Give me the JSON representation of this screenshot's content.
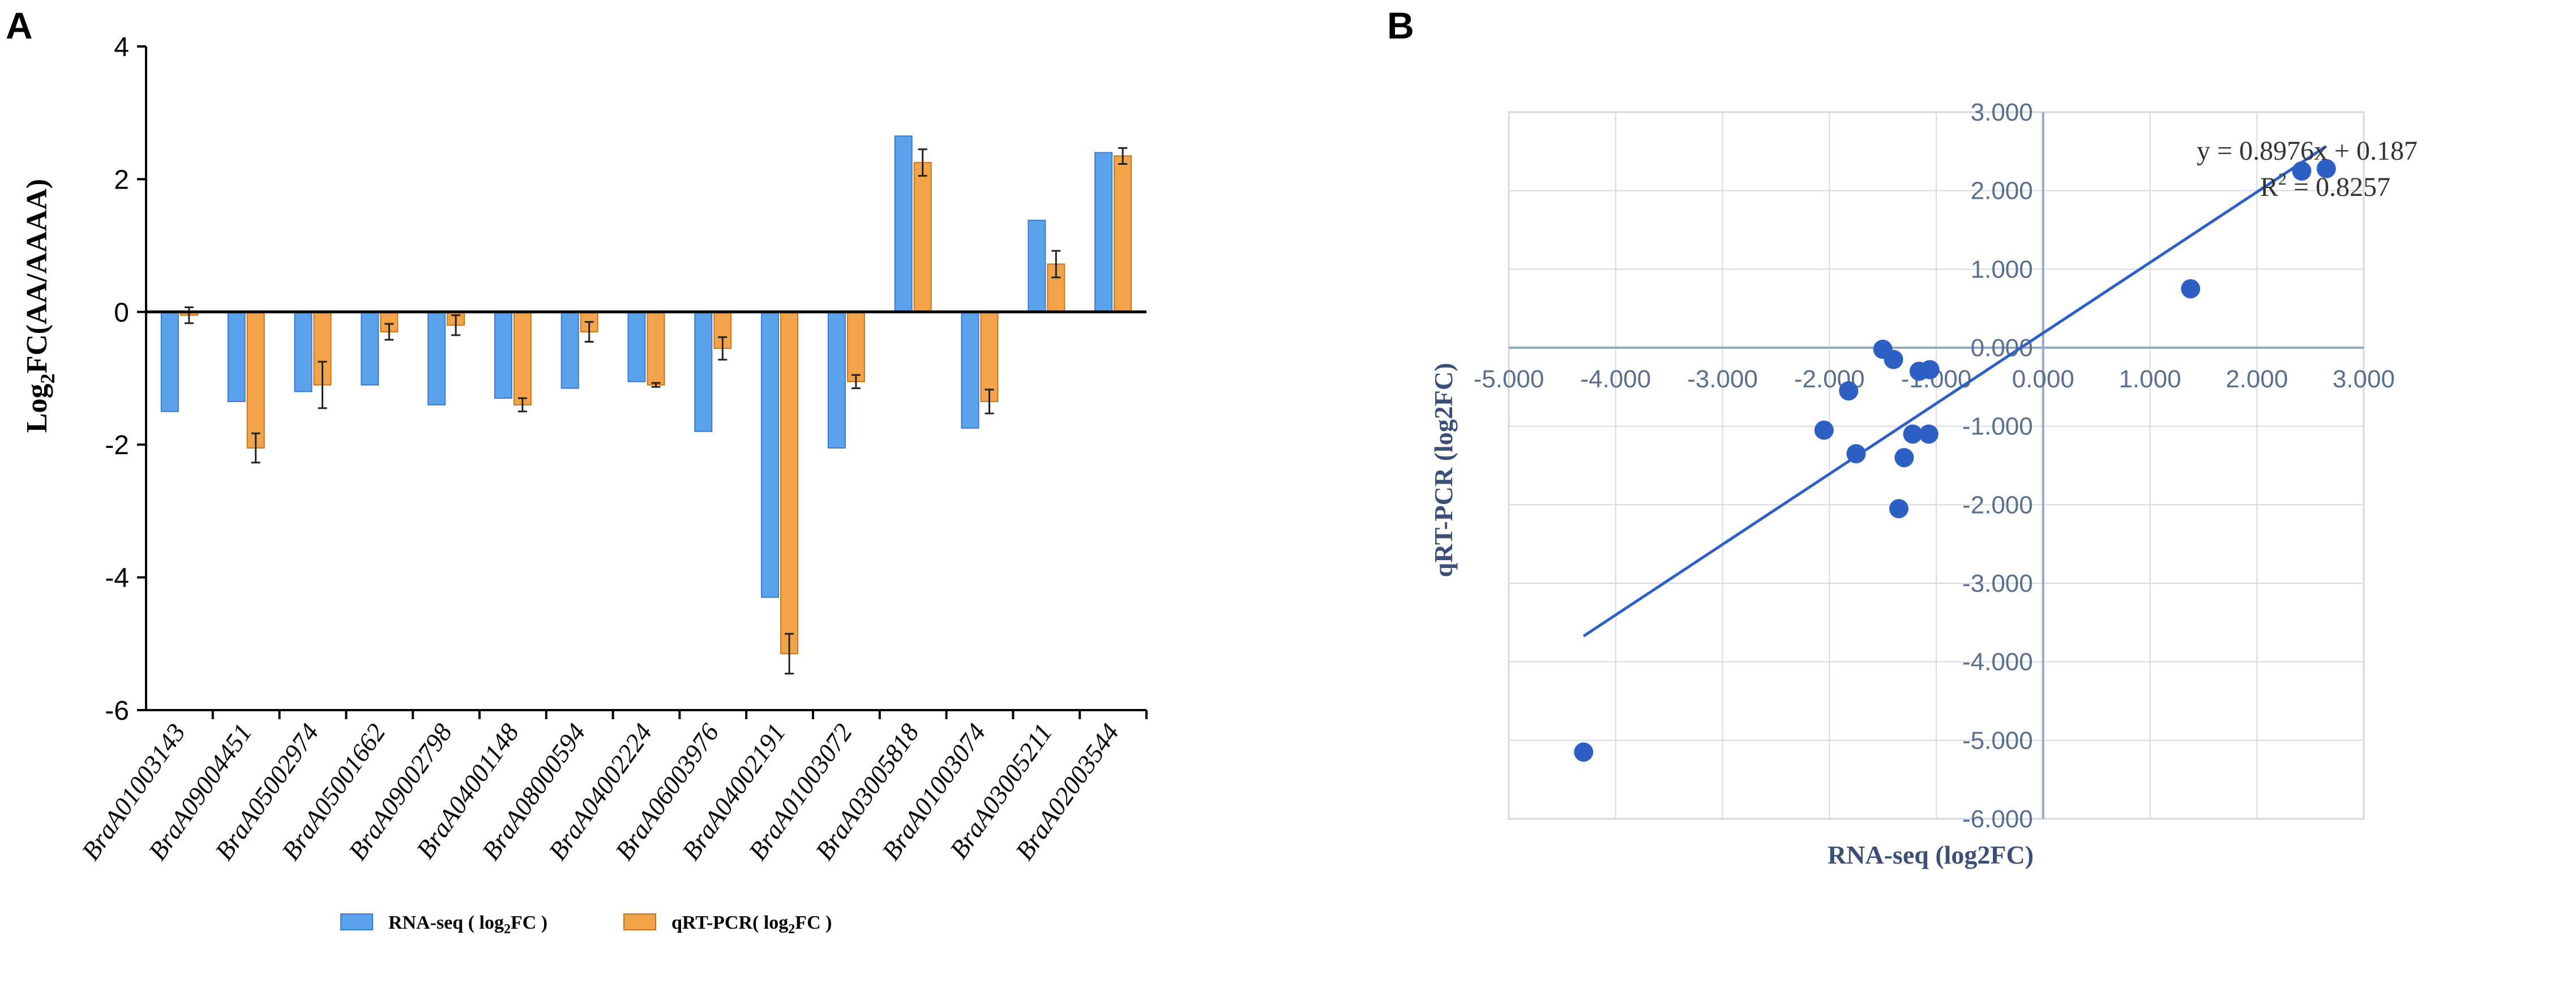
{
  "panels": {
    "a_label": "A",
    "b_label": "B"
  },
  "chart_data": [
    {
      "type": "bar",
      "panel": "A",
      "ylabel_main": "Log",
      "ylabel_sub": "2",
      "ylabel_rest": "FC(AA/AAAA)",
      "ylim": [
        -6,
        4
      ],
      "yticks": [
        4,
        2,
        0,
        -2,
        -4,
        -6
      ],
      "categories": [
        "BraA01003143",
        "BraA09004451",
        "BraA05002974",
        "BraA05001662",
        "BraA09002798",
        "BraA04001148",
        "BraA08000594",
        "BraA04002224",
        "BraA06003976",
        "BraA04002191",
        "BraA01003072",
        "BraA03005818",
        "BraA01003074",
        "BraA03005211",
        "BraA02003544"
      ],
      "series": [
        {
          "name": "RNA-seq",
          "legend_main": "RNA-seq ( log",
          "legend_sub": "2",
          "legend_rest": "FC )",
          "color": "#5aa2ea",
          "values": [
            -1.5,
            -1.35,
            -1.2,
            -1.1,
            -1.4,
            -1.3,
            -1.15,
            -1.05,
            -1.8,
            -4.3,
            -2.05,
            2.65,
            -1.75,
            1.38,
            2.4
          ]
        },
        {
          "name": "qRT-PCR",
          "legend_main": "qRT-PCR( log",
          "legend_sub": "2",
          "legend_rest": "FC )",
          "color": "#f3a34a",
          "values": [
            -0.05,
            -2.05,
            -1.1,
            -0.3,
            -0.2,
            -1.4,
            -0.3,
            -1.1,
            -0.55,
            -5.15,
            -1.05,
            2.25,
            -1.35,
            0.72,
            2.35
          ],
          "errors": [
            0.12,
            0.22,
            0.35,
            0.12,
            0.15,
            0.1,
            0.15,
            0.03,
            0.17,
            0.3,
            0.1,
            0.2,
            0.18,
            0.2,
            0.12
          ]
        }
      ]
    },
    {
      "type": "scatter",
      "panel": "B",
      "xlabel": "RNA-seq (log2FC)",
      "ylabel": "qRT-PCR (log2FC)",
      "xlim": [
        -5,
        3
      ],
      "ylim": [
        -6,
        3
      ],
      "xticks": [
        -5,
        -4,
        -3,
        -2,
        -1,
        0,
        1,
        2,
        3
      ],
      "yticks": [
        3,
        2,
        1,
        0,
        -1,
        -2,
        -3,
        -4,
        -5,
        -6
      ],
      "xtick_labels": [
        "-5.000",
        "-4.000",
        "-3.000",
        "-2.000",
        "-1.000",
        "0.000",
        "1.000",
        "2.000",
        "3.000"
      ],
      "ytick_labels": [
        "3.000",
        "2.000",
        "1.000",
        "0.000",
        "-1.000",
        "-2.000",
        "-3.000",
        "-4.000",
        "-5.000",
        "-6.000"
      ],
      "point_color": "#2d5fc4",
      "points": [
        {
          "x": -4.3,
          "y": -5.15
        },
        {
          "x": -2.05,
          "y": -1.05
        },
        {
          "x": -1.82,
          "y": -0.55
        },
        {
          "x": -1.75,
          "y": -1.35
        },
        {
          "x": -1.5,
          "y": -0.02
        },
        {
          "x": -1.4,
          "y": -0.15
        },
        {
          "x": -1.35,
          "y": -2.05
        },
        {
          "x": -1.3,
          "y": -1.4
        },
        {
          "x": -1.22,
          "y": -1.1
        },
        {
          "x": -1.16,
          "y": -0.3
        },
        {
          "x": -1.06,
          "y": -0.28
        },
        {
          "x": -1.07,
          "y": -1.1
        },
        {
          "x": 1.38,
          "y": 0.75
        },
        {
          "x": 2.42,
          "y": 2.25
        },
        {
          "x": 2.65,
          "y": 2.28
        }
      ],
      "fit": {
        "slope": 0.8976,
        "intercept": 0.187,
        "x_range": [
          -4.3,
          2.65
        ],
        "color": "#2d5fc4"
      },
      "equation": "y = 0.8976x + 0.187",
      "r2_main": "R",
      "r2_sup": "2",
      "r2_rest": " = 0.8257"
    }
  ]
}
